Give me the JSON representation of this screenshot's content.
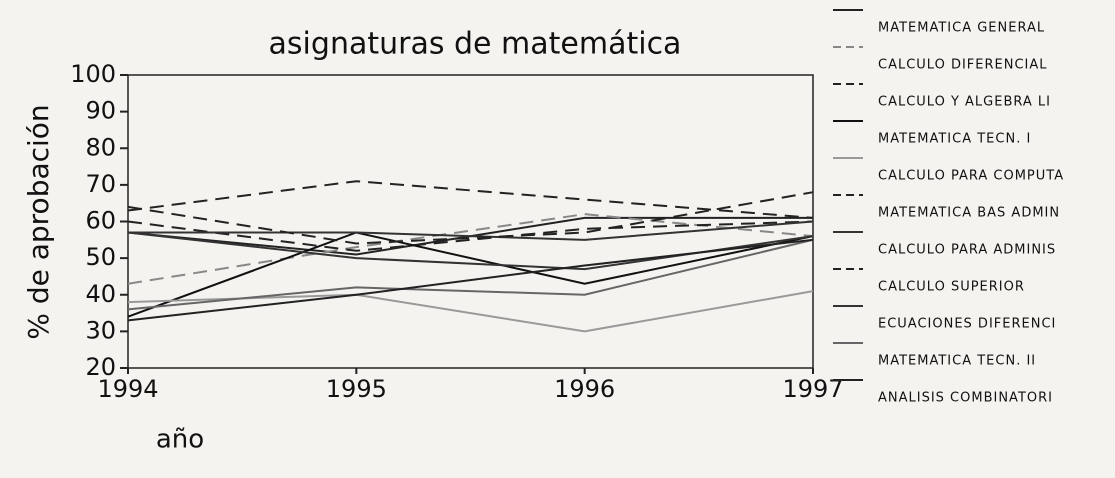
{
  "chart_data": {
    "type": "line",
    "title": "asignaturas de matemática",
    "y_label": "% de aprobación",
    "x_label": "año",
    "x": [
      1994,
      1995,
      1996,
      1997
    ],
    "xlim": [
      1994,
      1997
    ],
    "xticks": [
      1994,
      1995,
      1996,
      1997
    ],
    "ylim": [
      20,
      100
    ],
    "yticks": [
      20,
      30,
      40,
      50,
      60,
      70,
      80,
      90,
      100
    ],
    "legend": "right",
    "series": [
      {
        "name": "MATEMATICA GENERAL",
        "color": "#222222",
        "style": "solid",
        "values": [
          57,
          51,
          61,
          61
        ]
      },
      {
        "name": "CALCULO DIFERENCIAL",
        "color": "#888888",
        "style": "dashed",
        "values": [
          43,
          53,
          62,
          56
        ]
      },
      {
        "name": "CALCULO Y ALGEBRA LI",
        "color": "#222222",
        "style": "dashed",
        "values": [
          60,
          52,
          58,
          60
        ]
      },
      {
        "name": "MATEMATICA TECN. I",
        "color": "#111111",
        "style": "solid",
        "values": [
          34,
          57,
          43,
          56
        ]
      },
      {
        "name": "CALCULO PARA COMPUTA",
        "color": "#999999",
        "style": "solid",
        "values": [
          38,
          40,
          30,
          41
        ]
      },
      {
        "name": "MATEMATICA BAS ADMIN",
        "color": "#222222",
        "style": "dashed",
        "values": [
          63,
          71,
          66,
          61
        ]
      },
      {
        "name": "CALCULO PARA ADMINIS",
        "color": "#333333",
        "style": "solid",
        "values": [
          57,
          57,
          55,
          60
        ]
      },
      {
        "name": "CALCULO SUPERIOR",
        "color": "#222222",
        "style": "dashed",
        "values": [
          64,
          54,
          57,
          68
        ]
      },
      {
        "name": "ECUACIONES DIFERENCI",
        "color": "#333333",
        "style": "solid",
        "values": [
          57,
          50,
          47,
          56
        ]
      },
      {
        "name": "MATEMATICA TECN. II",
        "color": "#666666",
        "style": "solid",
        "values": [
          36,
          42,
          40,
          55
        ]
      },
      {
        "name": "ANALISIS COMBINATORI",
        "color": "#222222",
        "style": "solid",
        "values": [
          33,
          40,
          48,
          55
        ]
      }
    ]
  }
}
